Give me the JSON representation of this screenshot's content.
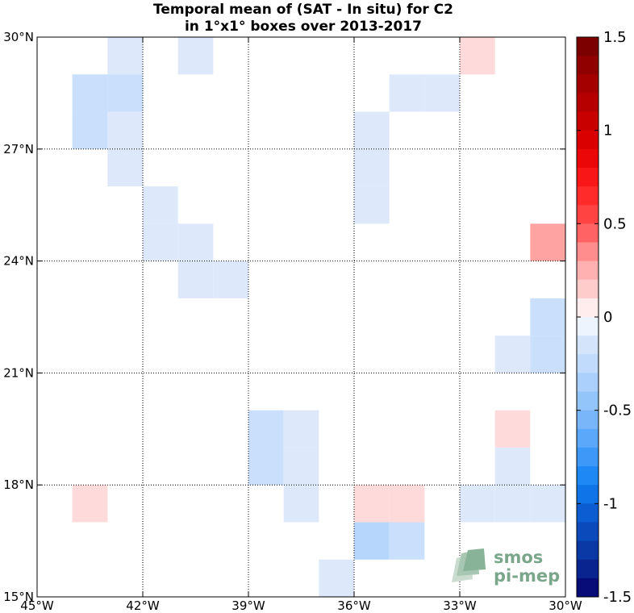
{
  "chart_data": {
    "type": "heatmap",
    "title_lines": [
      "Temporal mean of (SAT - In situ) for C2",
      "in 1°x1° boxes over 2013-2017"
    ],
    "x_ticks": [
      {
        "value": -45,
        "label": "45°W"
      },
      {
        "value": -42,
        "label": "42°W"
      },
      {
        "value": -39,
        "label": "39°W"
      },
      {
        "value": -36,
        "label": "36°W"
      },
      {
        "value": -33,
        "label": "33°W"
      },
      {
        "value": -30,
        "label": "30°W"
      }
    ],
    "y_ticks": [
      {
        "value": 15,
        "label": "15°N"
      },
      {
        "value": 18,
        "label": "18°N"
      },
      {
        "value": 21,
        "label": "21°N"
      },
      {
        "value": 24,
        "label": "24°N"
      },
      {
        "value": 27,
        "label": "27°N"
      },
      {
        "value": 30,
        "label": "30°N"
      }
    ],
    "lon_range": [
      -45,
      -30
    ],
    "lat_range": [
      15,
      30
    ],
    "grid": "dotted",
    "color_scale": {
      "min": -1.5,
      "max": 1.5,
      "step": 0.1,
      "ticks": [
        1.5,
        1,
        0.5,
        0,
        -0.5,
        -1,
        -1.5
      ],
      "tick_labels": [
        "1.5",
        "1",
        "0.5",
        "0",
        "-0.5",
        "-1",
        "-1.5"
      ]
    },
    "cells": [
      {
        "lon": -43,
        "lat": 29,
        "value": -0.1
      },
      {
        "lon": -41,
        "lat": 29,
        "value": -0.1
      },
      {
        "lon": -33,
        "lat": 29,
        "value": 0.1
      },
      {
        "lon": -44,
        "lat": 28,
        "value": -0.2
      },
      {
        "lon": -43,
        "lat": 28,
        "value": -0.2
      },
      {
        "lon": -35,
        "lat": 28,
        "value": -0.1
      },
      {
        "lon": -34,
        "lat": 28,
        "value": -0.1
      },
      {
        "lon": -44,
        "lat": 27,
        "value": -0.2
      },
      {
        "lon": -43,
        "lat": 27,
        "value": -0.1
      },
      {
        "lon": -36,
        "lat": 27,
        "value": -0.1
      },
      {
        "lon": -43,
        "lat": 26,
        "value": -0.1
      },
      {
        "lon": -36,
        "lat": 26,
        "value": -0.1
      },
      {
        "lon": -42,
        "lat": 25,
        "value": -0.1
      },
      {
        "lon": -36,
        "lat": 25,
        "value": -0.1
      },
      {
        "lon": -42,
        "lat": 24,
        "value": -0.1
      },
      {
        "lon": -41,
        "lat": 24,
        "value": -0.1
      },
      {
        "lon": -31,
        "lat": 24,
        "value": 0.3
      },
      {
        "lon": -41,
        "lat": 23,
        "value": -0.1
      },
      {
        "lon": -40,
        "lat": 23,
        "value": -0.1
      },
      {
        "lon": -31,
        "lat": 22,
        "value": -0.2
      },
      {
        "lon": -32,
        "lat": 21,
        "value": -0.1
      },
      {
        "lon": -31,
        "lat": 21,
        "value": -0.2
      },
      {
        "lon": -39,
        "lat": 19,
        "value": -0.2
      },
      {
        "lon": -38,
        "lat": 19,
        "value": -0.1
      },
      {
        "lon": -32,
        "lat": 19,
        "value": 0.1
      },
      {
        "lon": -39,
        "lat": 18,
        "value": -0.2
      },
      {
        "lon": -38,
        "lat": 18,
        "value": -0.1
      },
      {
        "lon": -32,
        "lat": 18,
        "value": -0.1
      },
      {
        "lon": -44,
        "lat": 17,
        "value": 0.1
      },
      {
        "lon": -38,
        "lat": 17,
        "value": -0.1
      },
      {
        "lon": -36,
        "lat": 17,
        "value": 0.1
      },
      {
        "lon": -35,
        "lat": 17,
        "value": 0.1
      },
      {
        "lon": -33,
        "lat": 17,
        "value": -0.1
      },
      {
        "lon": -32,
        "lat": 17,
        "value": -0.1
      },
      {
        "lon": -31,
        "lat": 17,
        "value": -0.1
      },
      {
        "lon": -36,
        "lat": 16,
        "value": -0.3
      },
      {
        "lon": -35,
        "lat": 16,
        "value": -0.2
      },
      {
        "lon": -37,
        "lat": 15,
        "value": -0.1
      }
    ],
    "watermark": [
      "smos",
      "pi-mep"
    ]
  }
}
